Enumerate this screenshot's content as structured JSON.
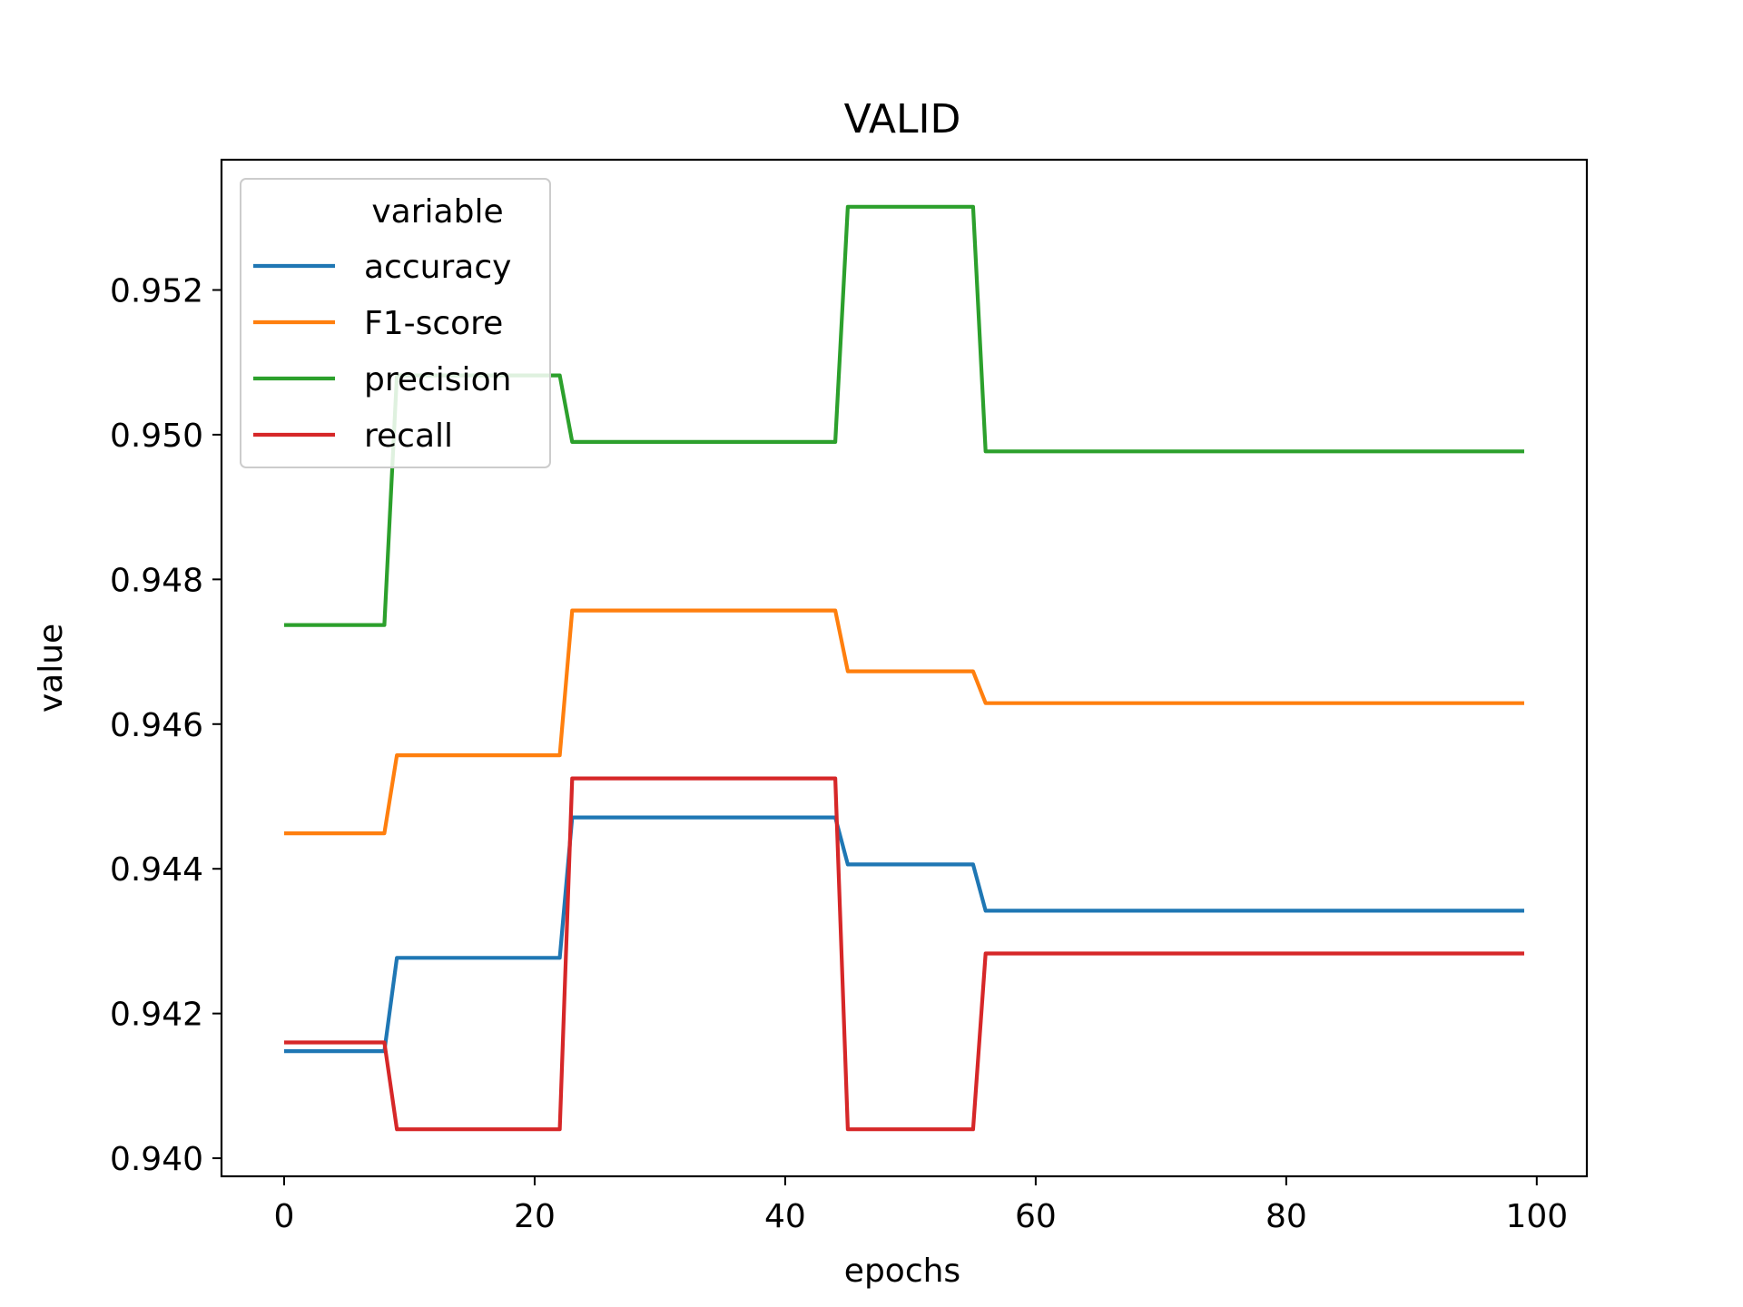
{
  "chart_data": {
    "type": "line",
    "title": "VALID",
    "xlabel": "epochs",
    "ylabel": "value",
    "xlim": [
      -5,
      104
    ],
    "ylim": [
      0.93975,
      0.9538
    ],
    "xticks": [
      0,
      20,
      40,
      60,
      80,
      100
    ],
    "xtick_labels": [
      "0",
      "20",
      "40",
      "60",
      "80",
      "100"
    ],
    "yticks": [
      0.94,
      0.942,
      0.944,
      0.946,
      0.948,
      0.95,
      0.952
    ],
    "ytick_labels": [
      "0.940",
      "0.942",
      "0.944",
      "0.946",
      "0.948",
      "0.950",
      "0.952"
    ],
    "grid": false,
    "legend": {
      "title": "variable",
      "position": "upper-left"
    },
    "series": [
      {
        "name": "accuracy",
        "color": "#1f77b4",
        "points": [
          [
            0,
            0.94148
          ],
          [
            8,
            0.94148
          ],
          [
            9,
            0.94277
          ],
          [
            22,
            0.94277
          ],
          [
            23,
            0.94471
          ],
          [
            44,
            0.94471
          ],
          [
            45,
            0.94406
          ],
          [
            55,
            0.94406
          ],
          [
            56,
            0.94342
          ],
          [
            99,
            0.94342
          ]
        ]
      },
      {
        "name": "F1-score",
        "color": "#ff7f0e",
        "points": [
          [
            0,
            0.94449
          ],
          [
            8,
            0.94449
          ],
          [
            9,
            0.94557
          ],
          [
            22,
            0.94557
          ],
          [
            23,
            0.94757
          ],
          [
            44,
            0.94757
          ],
          [
            45,
            0.94673
          ],
          [
            55,
            0.94673
          ],
          [
            56,
            0.94629
          ],
          [
            99,
            0.94629
          ]
        ]
      },
      {
        "name": "precision",
        "color": "#2ca02c",
        "points": [
          [
            0,
            0.94737
          ],
          [
            8,
            0.94737
          ],
          [
            9,
            0.95082
          ],
          [
            22,
            0.95082
          ],
          [
            23,
            0.9499
          ],
          [
            44,
            0.9499
          ],
          [
            45,
            0.95315
          ],
          [
            55,
            0.95315
          ],
          [
            56,
            0.94977
          ],
          [
            99,
            0.94977
          ]
        ]
      },
      {
        "name": "recall",
        "color": "#d62728",
        "points": [
          [
            0,
            0.9416
          ],
          [
            8,
            0.9416
          ],
          [
            9,
            0.9404
          ],
          [
            22,
            0.9404
          ],
          [
            23,
            0.94525
          ],
          [
            44,
            0.94525
          ],
          [
            45,
            0.9404
          ],
          [
            55,
            0.9404
          ],
          [
            56,
            0.94283
          ],
          [
            99,
            0.94283
          ]
        ]
      }
    ]
  }
}
